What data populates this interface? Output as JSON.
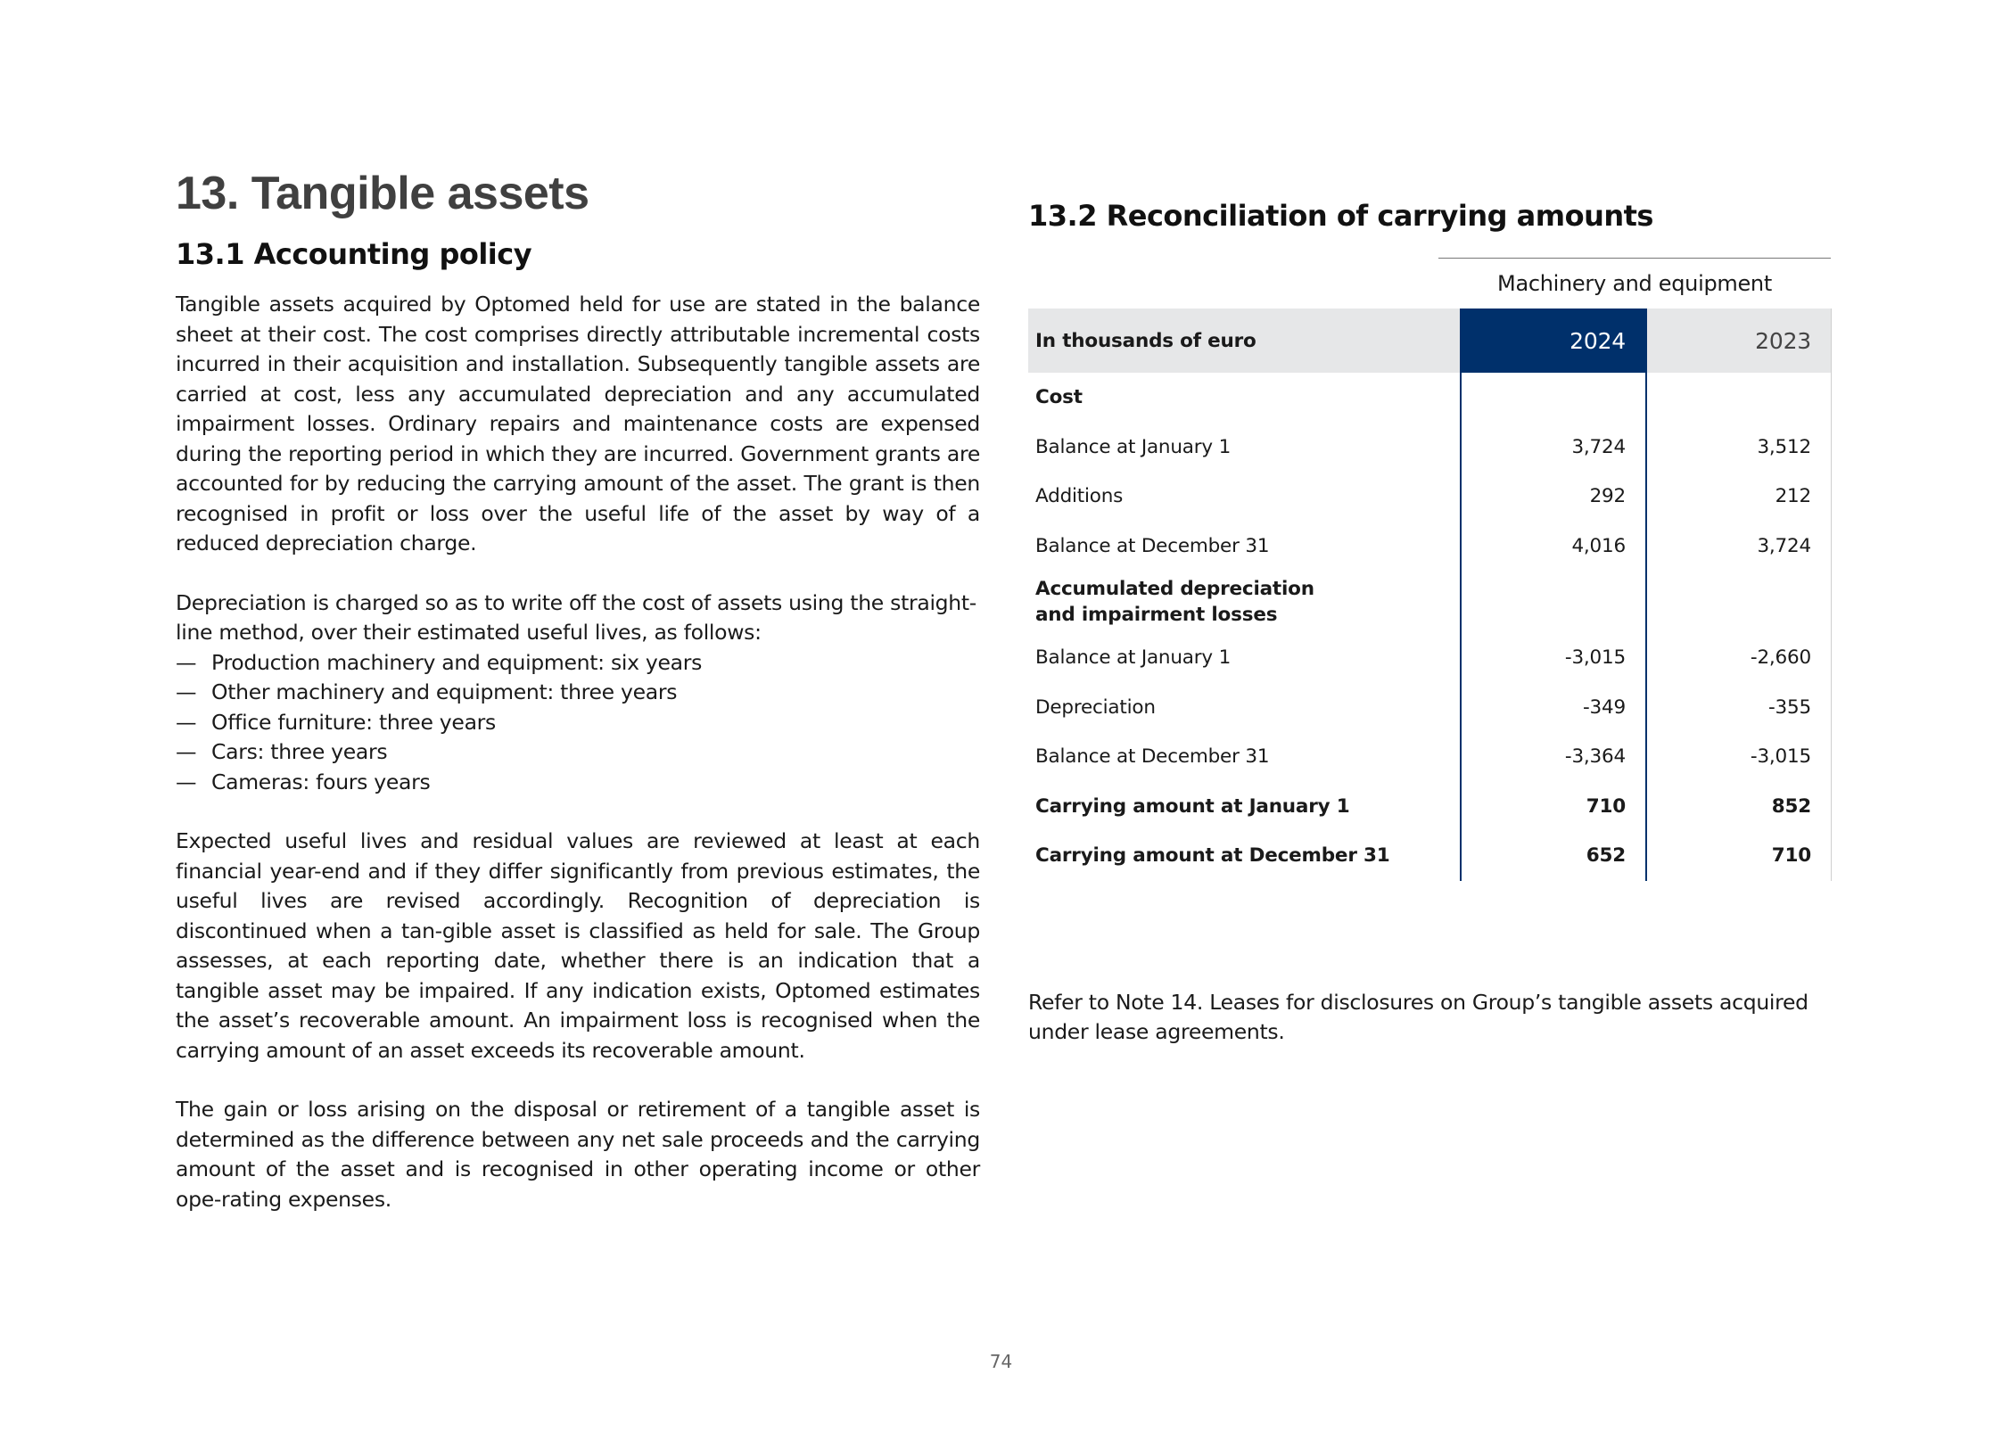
{
  "page": {
    "title": "13. Tangible assets",
    "page_number": "74"
  },
  "policy": {
    "heading": "13.1 Accounting policy",
    "para1": "Tangible  assets acquired by Optomed  held for use are stated  in the balance sheet at their cost.  The cost comprises directly attributable incremental costs incurred in their acquisition and installation. Subsequently tangible assets are carried at cost, less any accumulated depreciation and any accumulated impairment losses. Ordinary repairs and maintenance costs are expensed during the reporting period in which they are incurred. Government grants are accounted for by reducing the carrying amount of the asset. The grant is then recognised in profit or loss over the useful life of the asset by way of a reduced depreciation charge.",
    "para2": "Depreciation is charged so as to write off the cost of assets using the straight-line method, over their estimated useful lives, as follows:",
    "bullet_marker": "—",
    "bullets": [
      "Production machinery and equipment: six years",
      "Other machinery and equipment: three years",
      "Office furniture: three years",
      "Cars: three years",
      "Cameras: fours years"
    ],
    "para3": "Expected useful lives and residual values are reviewed at least at each financial year-end and if they differ significantly from previous estimates, the useful lives are revised accordingly. Recognition of depreciation is discontinued when a tan-gible asset is classified as held for sale. The Group assesses, at each reporting date, whether there is an indication that a tangible asset may be impaired. If any indication exists, Optomed estimates the asset’s recoverable amount. An impairment loss is recognised when the carrying amount of an asset exceeds its recoverable amount.",
    "para4": "The gain or loss arising on the disposal or retirement of a tangible asset is determined as the difference between any net sale proceeds and the carrying amount of the asset and is recognised in other operating income or other ope-rating expenses."
  },
  "reconciliation": {
    "heading": "13.2 Reconciliation of carrying amounts",
    "group_header": "Machinery and equipment",
    "unit_label": "In thousands of euro",
    "year_current": "2024",
    "year_previous": "2023",
    "accent_color": "#00306b",
    "rows": [
      {
        "label": "Cost",
        "v2024": "",
        "v2023": ""
      },
      {
        "label": "Balance at January 1",
        "v2024": "3,724",
        "v2023": "3,512"
      },
      {
        "label": "Additions",
        "v2024": "292",
        "v2023": "212"
      },
      {
        "label": "Balance at December 31",
        "v2024": "4,016",
        "v2023": "3,724"
      },
      {
        "label": "Accumulated depreciation and impairment losses",
        "label_line1": "Accumulated depreciation",
        "label_line2": "and impairment losses",
        "v2024": "",
        "v2023": ""
      },
      {
        "label": "Balance at January 1",
        "v2024": "-3,015",
        "v2023": "-2,660"
      },
      {
        "label": "Depreciation",
        "v2024": "-349",
        "v2023": "-355"
      },
      {
        "label": "Balance at December 31",
        "v2024": "-3,364",
        "v2023": "-3,015"
      },
      {
        "label": "Carrying amount at January 1",
        "v2024": "710",
        "v2023": "852"
      },
      {
        "label": "Carrying amount at December 31",
        "v2024": "652",
        "v2023": "710"
      }
    ],
    "note": "Refer to Note 14. Leases for disclosures on Group’s tangible assets acquired under lease agreements."
  }
}
